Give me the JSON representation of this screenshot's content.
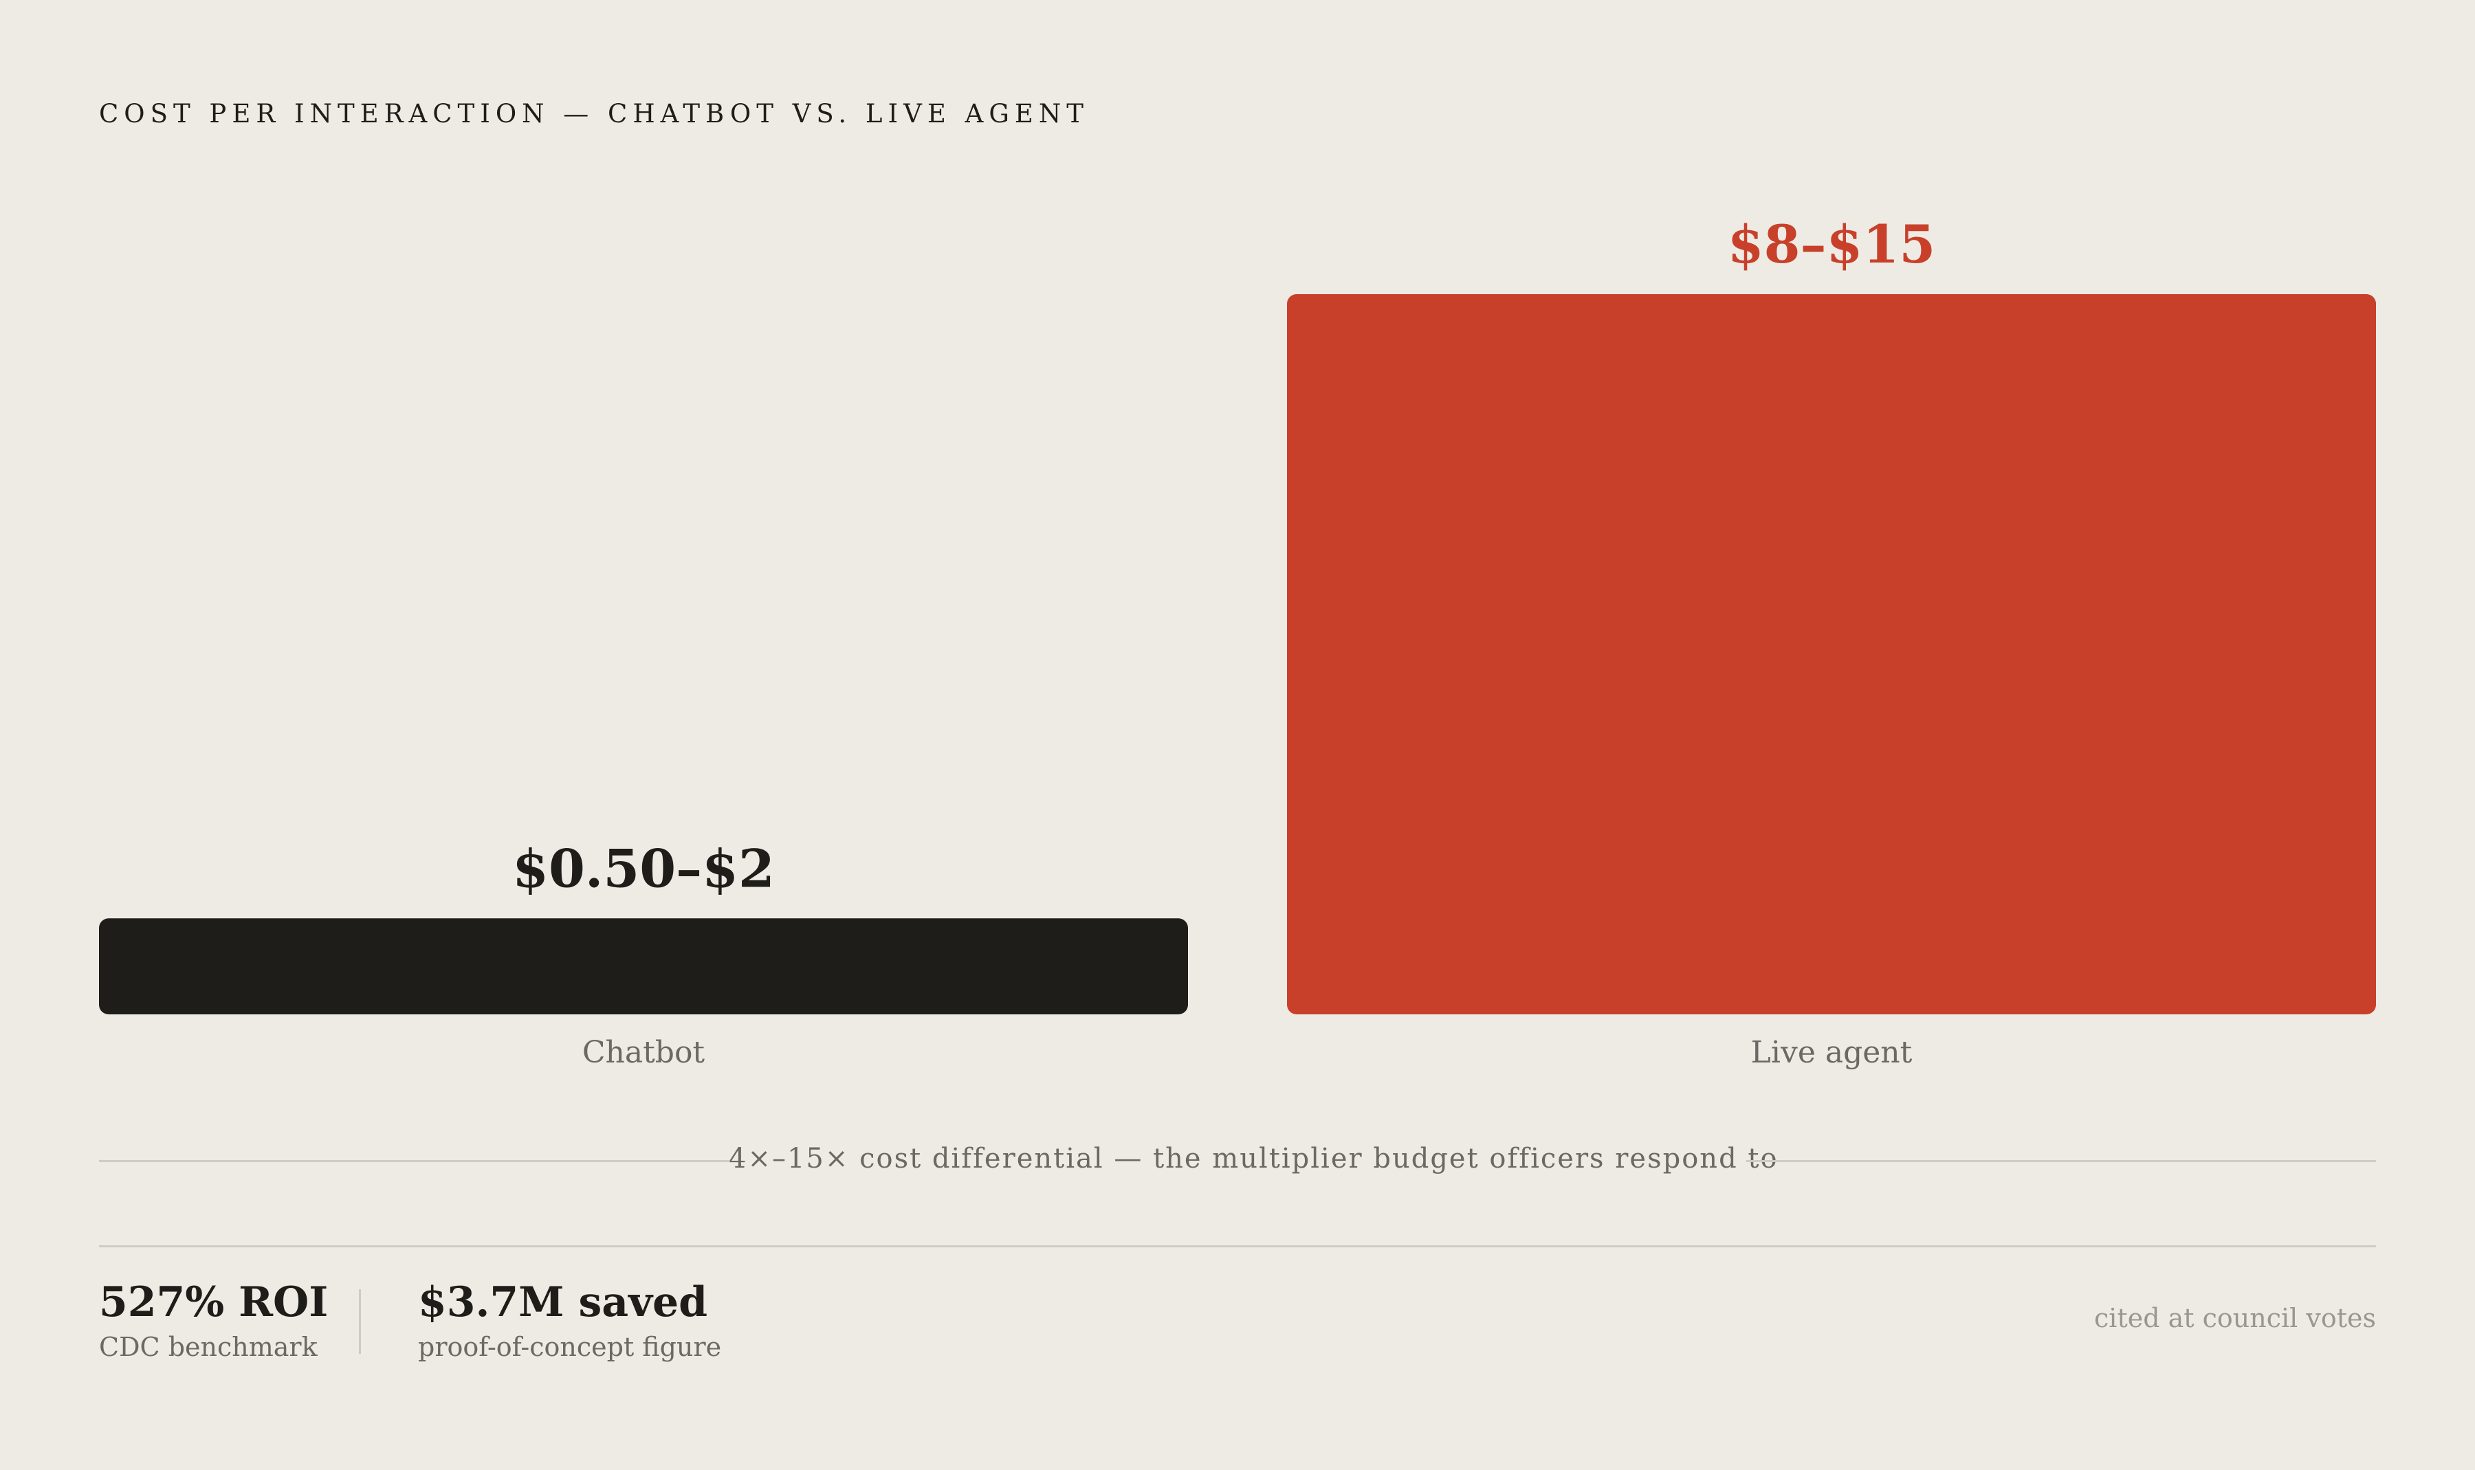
{
  "title": "COST PER INTERACTION — CHATBOT VS. LIVE AGENT",
  "colors": {
    "background": "#EEEBE4",
    "chatbot_bar": "#1E1D1A",
    "live_agent_bar": "#C8402A",
    "muted_text": "#6B6964"
  },
  "chart_data": {
    "type": "bar",
    "title": "COST PER INTERACTION — CHATBOT VS. LIVE AGENT",
    "categories": [
      "Chatbot",
      "Live agent"
    ],
    "values": [
      2,
      15
    ],
    "value_ranges": [
      [
        0.5,
        2
      ],
      [
        8,
        15
      ]
    ],
    "data_labels": [
      "$0.50–$2",
      "$8–$15"
    ],
    "ylim": [
      0,
      15
    ],
    "grid": false,
    "legend": "none"
  },
  "annotation": "4×–15× cost differential — the multiplier budget officers respond to",
  "stats": [
    {
      "value": "527% ROI",
      "label": "CDC benchmark"
    },
    {
      "value": "$3.7M saved",
      "label": "proof-of-concept figure"
    }
  ],
  "footnote": "cited at council votes"
}
